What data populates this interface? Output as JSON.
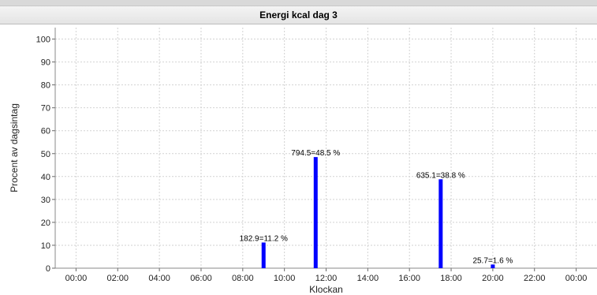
{
  "chart_data": {
    "type": "bar",
    "title": "Energi kcal  dag 3",
    "xlabel": "Klockan",
    "ylabel": "Procent av dagsintag",
    "ylim": [
      0,
      105
    ],
    "xlim_hours": [
      -1,
      25
    ],
    "yticks": [
      "0",
      "10",
      "20",
      "30",
      "40",
      "50",
      "60",
      "70",
      "80",
      "90",
      "100"
    ],
    "xticks": [
      "00:00",
      "02:00",
      "04:00",
      "06:00",
      "08:00",
      "10:00",
      "12:00",
      "14:00",
      "16:00",
      "18:00",
      "20:00",
      "22:00",
      "00:00"
    ],
    "grid": true,
    "bar_color": "#0000ff",
    "bars": [
      {
        "time_hours": 9.0,
        "value": 11.2,
        "label": "182.9=11.2 %"
      },
      {
        "time_hours": 11.5,
        "value": 48.5,
        "label": "794.5=48.5 %"
      },
      {
        "time_hours": 17.5,
        "value": 38.8,
        "label": "635.1=38.8 %"
      },
      {
        "time_hours": 20.0,
        "value": 1.6,
        "label": "25.7=1.6 %"
      }
    ]
  }
}
